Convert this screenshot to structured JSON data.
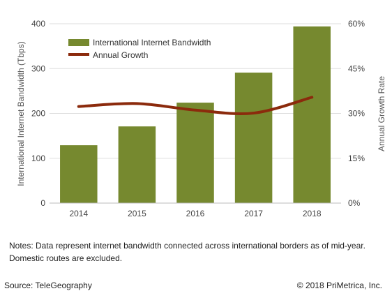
{
  "chart_data": {
    "type": "bar",
    "categories": [
      "2014",
      "2015",
      "2016",
      "2017",
      "2018"
    ],
    "series": [
      {
        "name": "International Internet Bandwidth",
        "type": "bar",
        "axis": "left",
        "color": "#76892f",
        "values": [
          129,
          171,
          224,
          291,
          394
        ]
      },
      {
        "name": "Annual Growth",
        "type": "line",
        "axis": "right",
        "color": "#8b2a0c",
        "values": [
          32.3,
          33.3,
          31.1,
          30.1,
          35.4
        ]
      }
    ],
    "ylabel": "International Internet Bandwidth (Tbps)",
    "y2label": "Annual Growth Rate",
    "ylim": [
      0,
      400
    ],
    "y2lim": [
      0,
      60
    ],
    "yticks": [
      "0",
      "100",
      "200",
      "300",
      "400"
    ],
    "y2ticks": [
      "0%",
      "15%",
      "30%",
      "45%",
      "60%"
    ],
    "grid": true,
    "legend_position": "top-left"
  },
  "notes": {
    "line1": "Notes: Data represent internet bandwidth connected across international borders as of mid-year.",
    "line2": "Domestic routes are excluded."
  },
  "footer": {
    "source": "Source: TeleGeography",
    "copyright": "© 2018 PriMetrica, Inc."
  }
}
